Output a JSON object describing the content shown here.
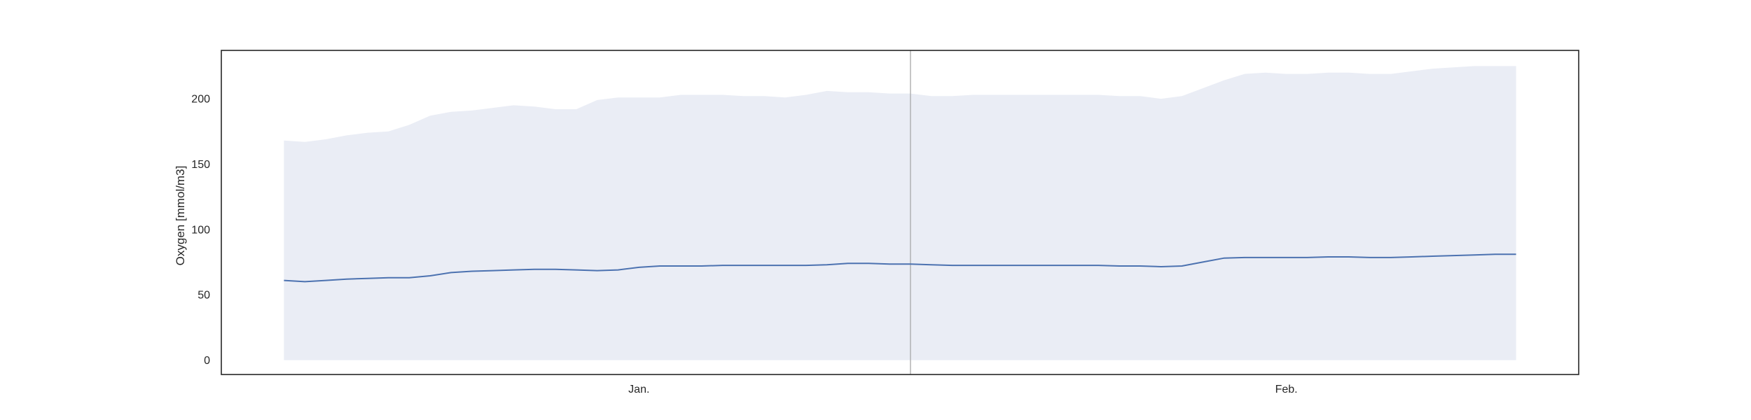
{
  "chart_data": {
    "type": "area",
    "xlabel": "",
    "ylabel": "Oxygen [mmol/m3]",
    "ylim": [
      -11,
      237
    ],
    "yticks": [
      0,
      50,
      100,
      150,
      200
    ],
    "xticks": [
      {
        "label": "Jan.",
        "at": 17
      },
      {
        "label": "Feb.",
        "at": 48
      }
    ],
    "xlim": [
      -3,
      62
    ],
    "marker_line_x": 30,
    "grid": false,
    "legend": "none",
    "x": [
      0,
      1,
      2,
      3,
      4,
      5,
      6,
      7,
      8,
      9,
      10,
      11,
      12,
      13,
      14,
      15,
      16,
      17,
      18,
      19,
      20,
      21,
      22,
      23,
      24,
      25,
      26,
      27,
      28,
      29,
      30,
      31,
      32,
      33,
      34,
      35,
      36,
      37,
      38,
      39,
      40,
      41,
      42,
      43,
      44,
      45,
      46,
      47,
      48,
      49,
      50,
      51,
      52,
      53,
      54,
      55,
      56,
      57,
      58,
      59
    ],
    "series": [
      {
        "kind": "band",
        "color": "#eaedf5",
        "lower": [
          0,
          0,
          0,
          0,
          0,
          0,
          0,
          0,
          0,
          0,
          0,
          0,
          0,
          0,
          0,
          0,
          0,
          0,
          0,
          0,
          0,
          0,
          0,
          0,
          0,
          0,
          0,
          0,
          0,
          0,
          0,
          0,
          0,
          0,
          0,
          0,
          0,
          0,
          0,
          0,
          0,
          0,
          0,
          0,
          0,
          0,
          0,
          0,
          0,
          0,
          0,
          0,
          0,
          0,
          0,
          0,
          0,
          0,
          0,
          0
        ],
        "upper": [
          168,
          167,
          169,
          172,
          174,
          175,
          180,
          187,
          190,
          191,
          193,
          195,
          194,
          192,
          192,
          199,
          201,
          201,
          201,
          203,
          203,
          203,
          202,
          202,
          201,
          203,
          206,
          205,
          205,
          204,
          204,
          202,
          202,
          203,
          203,
          203,
          203,
          203,
          203,
          203,
          202,
          202,
          200,
          202,
          208,
          214,
          219,
          220,
          219,
          219,
          220,
          220,
          219,
          219,
          221,
          223,
          224,
          225,
          225,
          225
        ]
      },
      {
        "kind": "line",
        "color": "#4c72b0",
        "values": [
          61,
          60,
          61,
          62,
          62.5,
          63,
          63,
          64.5,
          67,
          68,
          68.5,
          69,
          69.5,
          69.5,
          69,
          68.5,
          69,
          71,
          72,
          72,
          72,
          72.5,
          72.5,
          72.5,
          72.5,
          72.5,
          73,
          74,
          74,
          73.5,
          73.5,
          73,
          72.5,
          72.5,
          72.5,
          72.5,
          72.5,
          72.5,
          72.5,
          72.5,
          72,
          72,
          71.5,
          72,
          75,
          78,
          78.5,
          78.5,
          78.5,
          78.5,
          79,
          79,
          78.5,
          78.5,
          79,
          79.5,
          80,
          80.5,
          81,
          81
        ]
      }
    ]
  }
}
